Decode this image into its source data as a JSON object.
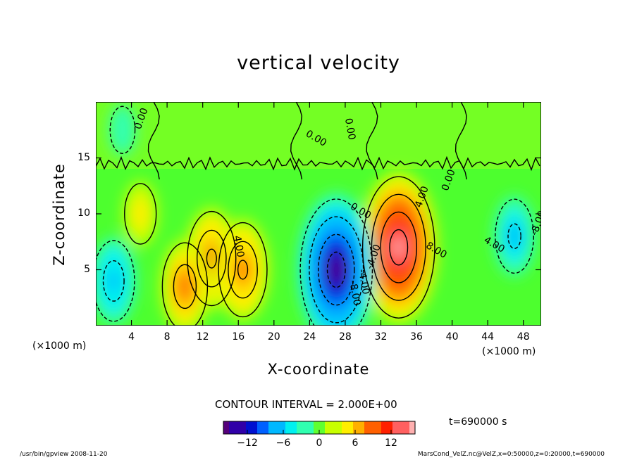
{
  "chart_data": {
    "type": "heatmap",
    "title": "vertical velocity",
    "xlabel": "X-coordinate",
    "ylabel": "Z-coordinate",
    "x_unit": "(×1000 m)",
    "y_unit": "(×1000 m)",
    "xlim": [
      0,
      50
    ],
    "ylim": [
      0,
      20
    ],
    "x_ticks": [
      "4",
      "8",
      "12",
      "16",
      "20",
      "24",
      "28",
      "32",
      "36",
      "40",
      "44",
      "48"
    ],
    "y_ticks": [
      "5",
      "10",
      "15"
    ],
    "contour_labels": [
      "0.00",
      "0.00",
      "0.00",
      "0.00",
      "0.00",
      "4.00",
      "4.00",
      "4.00",
      "-8.00",
      "-4.00",
      "8.00",
      "-4.00",
      "-8.00"
    ],
    "colorbar": {
      "ticks": [
        "−12",
        "−6",
        "0",
        "6",
        "12"
      ],
      "range": [
        -16,
        16
      ],
      "colors": [
        "#55007a",
        "#3000a8",
        "#0010d0",
        "#0060ff",
        "#00b8ff",
        "#00f0f0",
        "#30ffb0",
        "#60ff30",
        "#c8ff00",
        "#ffee00",
        "#ffb000",
        "#ff6000",
        "#ff2000",
        "#ff6060",
        "#ffb0b0"
      ]
    },
    "features": [
      {
        "name": "updraft",
        "x": 34,
        "z": 7,
        "peak": 16
      },
      {
        "name": "updraft",
        "x": 13,
        "z": 6,
        "peak": 9
      },
      {
        "name": "updraft",
        "x": 16.5,
        "z": 5,
        "peak": 9
      },
      {
        "name": "updraft",
        "x": 10,
        "z": 3.5,
        "peak": 8
      },
      {
        "name": "updraft",
        "x": 5,
        "z": 10,
        "peak": 4
      },
      {
        "name": "downdraft",
        "x": 27,
        "z": 5,
        "peak": -16
      },
      {
        "name": "downdraft",
        "x": 2,
        "z": 4,
        "peak": -7
      },
      {
        "name": "downdraft",
        "x": 47,
        "z": 8,
        "peak": -6
      },
      {
        "name": "downdraft",
        "x": 3,
        "z": 17.5,
        "peak": -2
      }
    ],
    "contour_interval": "CONTOUR INTERVAL = 2.000E+00",
    "time": "t=690000 s"
  },
  "footer": {
    "left": "/usr/bin/gpview  2008-11-20",
    "right": "MarsCond_VelZ.nc@VelZ,x=0:50000,z=0:20000,t=690000"
  }
}
